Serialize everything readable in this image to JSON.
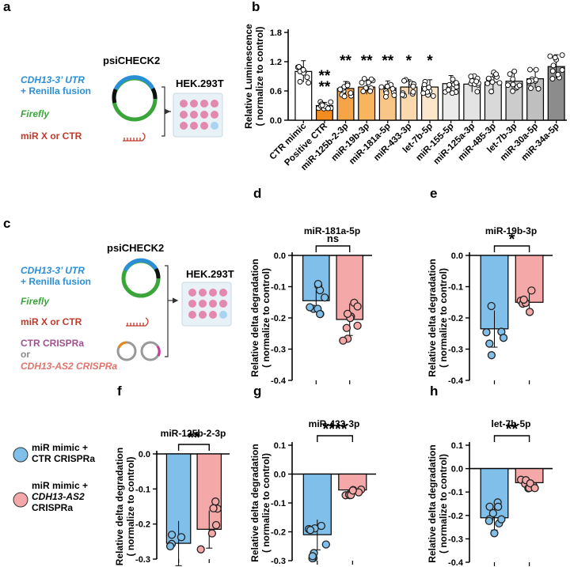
{
  "panels": {
    "a": {
      "letter": "a",
      "plasmid": "psiCHECK2",
      "cell": "HEK.293T",
      "utr_line1": "CDH13-3’ UTR",
      "utr_line2": "+ Renilla fusion",
      "firefly": "Firefly",
      "mir": "miR X or CTR"
    },
    "c": {
      "letter": "c",
      "plasmid": "psiCHECK2",
      "cell": "HEK.293T",
      "utr_line1": "CDH13-3’ UTR",
      "utr_line2": "+ Renilla fusion",
      "firefly": "Firefly",
      "mir": "miR X or CTR",
      "crispr1": "CTR CRISPRa",
      "crispr_or": "or",
      "crispr2": "CDH13-AS2 CRISPRa"
    },
    "legend": {
      "item1_line1": "miR mimic +",
      "item1_line2": "CTR CRISPRa",
      "item2_line1": "miR mimic +",
      "item2_line2": "CDH13-AS2",
      "item2_line3": "CRISPRa",
      "color1": "#7fbfea",
      "color2": "#f4a9a8"
    }
  },
  "chart_data": [
    {
      "id": "b",
      "letter": "b",
      "type": "bar",
      "ylabel_line1": "Relative Luminescence",
      "ylabel_line2": "( normalize to control)",
      "ylim": [
        0,
        1.8
      ],
      "yticks": [
        "0.0",
        "0.6",
        "1.2",
        "1.8"
      ],
      "categories": [
        "CTR mimic",
        "Positive CTR",
        "miR-125b-2-3p",
        "miR-19b-3p",
        "miR-181a-5p",
        "miR-433-3p",
        "let-7b-5p",
        "miR-155-5p",
        "miR-125a-3p",
        "miR-485-3p",
        "let-7b-3p",
        "miR-30a-5p",
        "miR-34a-5p"
      ],
      "values": [
        1.0,
        0.3,
        0.65,
        0.68,
        0.66,
        0.68,
        0.68,
        0.75,
        0.74,
        0.78,
        0.8,
        0.85,
        1.1
      ],
      "colors": [
        "#ffffff",
        "#f28c1e",
        "#f5a547",
        "#f7b560",
        "#f8c686",
        "#fad9ae",
        "#fce7cc",
        "#ebebeb",
        "#e3e3e3",
        "#d9d9d9",
        "#cccccc",
        "#bfbfbf",
        "#8c8c8c"
      ],
      "significance": [
        "",
        "**\n**",
        "**",
        "**",
        "**",
        "*",
        "*",
        "",
        "",
        "",
        "",
        "",
        ""
      ]
    },
    {
      "id": "d",
      "letter": "d",
      "type": "bar",
      "title": "miR-181a-5p",
      "ylabel_line1": "Relative delta degradation",
      "ylabel_line2": "( normalize to control)",
      "ylim": [
        -0.4,
        0.0
      ],
      "yticks": [
        "0.0",
        "-0.1",
        "-0.2",
        "-0.3",
        "-0.4"
      ],
      "categories": [
        "miR mimic + CTR CRISPRa",
        "miR mimic + CDH13-AS2 CRISPRa"
      ],
      "values": [
        -0.145,
        -0.205
      ],
      "significance": "ns"
    },
    {
      "id": "e",
      "letter": "e",
      "type": "bar",
      "title": "miR-19b-3p",
      "ylabel_line1": "Relative delta degradation",
      "ylabel_line2": "( normalize to control)",
      "ylim": [
        -0.4,
        0.0
      ],
      "yticks": [
        "0.0",
        "-0.1",
        "-0.2",
        "-0.3",
        "-0.4"
      ],
      "categories": [
        "miR mimic + CTR CRISPRa",
        "miR mimic + CDH13-AS2 CRISPRa"
      ],
      "values": [
        -0.235,
        -0.15
      ],
      "significance": "*"
    },
    {
      "id": "f",
      "letter": "f",
      "type": "bar",
      "title": "miR-125b-2-3p",
      "ylabel_line1": "Relative delta degradation",
      "ylabel_line2": "( normalize to control)",
      "ylim": [
        -0.3,
        0.0
      ],
      "yticks": [
        "0.0",
        "-0.1",
        "-0.2",
        "-0.3"
      ],
      "categories": [
        "miR mimic + CTR CRISPRa",
        "miR mimic + CDH13-AS2 CRISPRa"
      ],
      "values": [
        -0.255,
        -0.215
      ],
      "significance": "**"
    },
    {
      "id": "g",
      "letter": "g",
      "type": "bar",
      "title": "miR-433-3p",
      "ylabel_line1": "Relative delta degradation",
      "ylabel_line2": "( normalize to control)",
      "ylim": [
        -0.3,
        0.1
      ],
      "yticks": [
        "0.1",
        "0.0",
        "-0.1",
        "-0.2",
        "-0.3"
      ],
      "categories": [
        "miR mimic + CTR CRISPRa",
        "miR mimic + CDH13-AS2 CRISPRa"
      ],
      "values": [
        -0.21,
        -0.055
      ],
      "significance": "****"
    },
    {
      "id": "h",
      "letter": "h",
      "type": "bar",
      "title": "let-7b-5p",
      "ylabel_line1": "Relative delta degradation",
      "ylabel_line2": "( normalize to control)",
      "ylim": [
        -0.4,
        0.1
      ],
      "yticks": [
        "0.1",
        "0.0",
        "-0.1",
        "-0.2",
        "-0.3",
        "-0.4"
      ],
      "categories": [
        "miR mimic + CTR CRISPRa",
        "miR mimic + CDH13-AS2 CRISPRa"
      ],
      "values": [
        -0.21,
        -0.06
      ],
      "significance": "**"
    }
  ]
}
